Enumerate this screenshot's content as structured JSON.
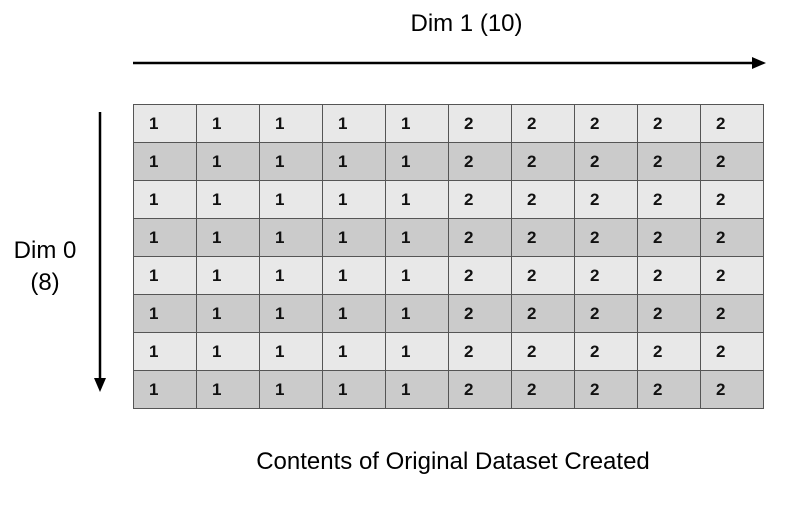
{
  "dim1_label": "Dim 1 (10)",
  "dim0_label_line1": "Dim 0",
  "dim0_label_line2": "(8)",
  "caption": "Contents of Original Dataset Created",
  "colors": {
    "row_light": "#e8e8e8",
    "row_dark": "#cbcbcb",
    "grid_line": "#555555"
  },
  "grid": [
    [
      1,
      1,
      1,
      1,
      1,
      2,
      2,
      2,
      2,
      2
    ],
    [
      1,
      1,
      1,
      1,
      1,
      2,
      2,
      2,
      2,
      2
    ],
    [
      1,
      1,
      1,
      1,
      1,
      2,
      2,
      2,
      2,
      2
    ],
    [
      1,
      1,
      1,
      1,
      1,
      2,
      2,
      2,
      2,
      2
    ],
    [
      1,
      1,
      1,
      1,
      1,
      2,
      2,
      2,
      2,
      2
    ],
    [
      1,
      1,
      1,
      1,
      1,
      2,
      2,
      2,
      2,
      2
    ],
    [
      1,
      1,
      1,
      1,
      1,
      2,
      2,
      2,
      2,
      2
    ],
    [
      1,
      1,
      1,
      1,
      1,
      2,
      2,
      2,
      2,
      2
    ]
  ]
}
